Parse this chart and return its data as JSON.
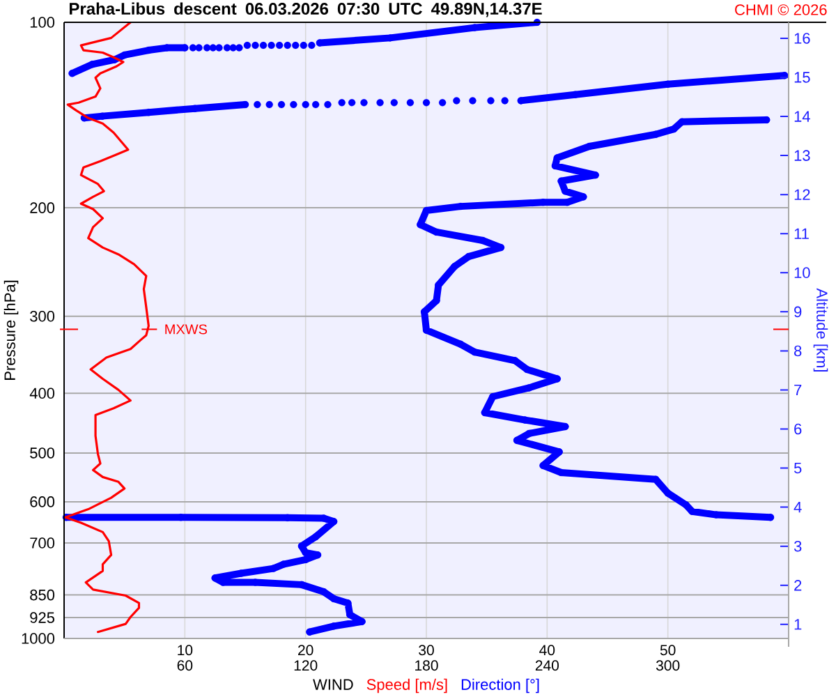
{
  "chart_data": {
    "type": "line",
    "title": "Praha-Libus descent 06.03.2026 07:30 UTC 49.89N,14.37E",
    "xlabel": "WIND",
    "ylabel": "Pressure [hPa]",
    "y2label": "Altitude [km]",
    "annotations": [
      "CHMI © 2026",
      {
        "text": "MXWS",
        "x": 7.0,
        "y": 315
      }
    ],
    "xlim": [
      0,
      60
    ],
    "xticks": [
      10,
      20,
      30,
      40,
      50
    ],
    "x2lim": [
      0,
      360
    ],
    "x2ticks": [
      60,
      120,
      180,
      240,
      300
    ],
    "ylim": [
      1000,
      100
    ],
    "yticks": [
      100,
      200,
      300,
      400,
      500,
      600,
      700,
      850,
      925,
      1000
    ],
    "y2lim": [
      0.64,
      16.41
    ],
    "y2ticks": [
      1,
      2,
      3,
      4,
      5,
      6,
      7,
      8,
      9,
      10,
      11,
      12,
      13,
      14,
      15,
      16
    ],
    "log": "y",
    "grid": true,
    "legend": "bottom",
    "series": [
      {
        "name": "Speed [m/s]",
        "color": "#ff0000",
        "x": [
          5.5,
          3.9,
          1.4,
          1.6,
          3.2,
          4.1,
          4.9,
          4.3,
          3.0,
          2.6,
          3.0,
          2.6,
          1.2,
          0.3,
          1.0,
          2.0,
          3.2,
          4.1,
          5.3,
          4.3,
          3.0,
          1.6,
          1.4,
          2.8,
          3.3,
          2.4,
          1.4,
          2.4,
          3.2,
          2.4,
          2.0,
          3.2,
          4.5,
          5.8,
          6.8,
          6.6,
          6.8,
          7.0,
          6.8,
          6.4,
          5.5,
          3.5,
          2.2,
          3.2,
          4.5,
          5.5,
          4.1,
          2.6,
          2.6,
          2.8,
          3.0,
          2.4,
          3.2,
          4.5,
          5.0,
          3.9,
          2.0,
          0.1,
          1.4,
          3.2,
          3.7,
          3.9,
          3.2,
          3.2,
          1.8,
          2.4,
          5.1,
          6.2,
          6.2,
          5.5,
          5.1,
          2.8
        ],
        "values": [
          100,
          106,
          109,
          111,
          112,
          114,
          116,
          118,
          121,
          123,
          128,
          132,
          135,
          136,
          139,
          143,
          146,
          151,
          161,
          164,
          168,
          172,
          177,
          183,
          188,
          192,
          197,
          201,
          208,
          215,
          224,
          232,
          238,
          247,
          258,
          271,
          290,
          311,
          322,
          327,
          339,
          350,
          366,
          379,
          395,
          411,
          423,
          434,
          469,
          502,
          520,
          533,
          547,
          557,
          571,
          591,
          617,
          636,
          649,
          672,
          695,
          732,
          758,
          777,
          811,
          833,
          852,
          876,
          892,
          923,
          947,
          976
        ]
      },
      {
        "name": "Direction [°]",
        "color": "#0000ff",
        "marker": "circle",
        "axis": "x2",
        "x": [
          235,
          204,
          162,
          127,
          null,
          123,
          null,
          119,
          null,
          115,
          null,
          111,
          null,
          107,
          null,
          103,
          null,
          99,
          null,
          95,
          null,
          91,
          null,
          87,
          null,
          84,
          null,
          81,
          null,
          77,
          null,
          74,
          null,
          71,
          null,
          67,
          null,
          64,
          null,
          60,
          51,
          42,
          30,
          25,
          14,
          4,
          null,
          358,
          300,
          254,
          227,
          null,
          219,
          null,
          212,
          null,
          203,
          null,
          195,
          null,
          188,
          null,
          180,
          null,
          172,
          null,
          164,
          null,
          157,
          null,
          149,
          null,
          143,
          null,
          138,
          null,
          131,
          null,
          125,
          null,
          120,
          null,
          114,
          null,
          108,
          null,
          102,
          null,
          96,
          null,
          90,
          65,
          42,
          19,
          10,
          null,
          349,
          307,
          303,
          294,
          261,
          245,
          244,
          264,
          247,
          249,
          258,
          250,
          238,
          197,
          180,
          177,
          185,
          208,
          217,
          201,
          194,
          186,
          185,
          179,
          180,
          197,
          204,
          224,
          230,
          245,
          231,
          213,
          209,
          229,
          249,
          231,
          225,
          246,
          238,
          247,
          294,
          300,
          309,
          312,
          324,
          351,
          null,
          1,
          58,
          111,
          129,
          134,
          125,
          118,
          120,
          126,
          120,
          109,
          104,
          88,
          75,
          79,
          95,
          118,
          129,
          134,
          141,
          142,
          148,
          134,
          122
        ],
        "values": [
          100,
          102,
          106,
          108,
          null,
          109,
          null,
          109,
          null,
          109,
          null,
          109,
          null,
          109,
          null,
          109,
          null,
          109,
          null,
          109,
          null,
          109,
          null,
          110,
          null,
          110,
          null,
          110,
          null,
          110,
          null,
          110,
          null,
          110,
          null,
          110,
          null,
          110,
          null,
          110,
          110,
          111,
          113,
          115,
          117,
          121,
          null,
          122,
          126,
          131,
          134,
          null,
          134,
          null,
          134,
          null,
          134,
          null,
          134,
          null,
          135,
          null,
          135,
          null,
          135,
          null,
          135,
          null,
          135,
          null,
          135,
          null,
          135,
          null,
          135,
          null,
          136,
          null,
          136,
          null,
          136,
          null,
          136,
          null,
          136,
          null,
          136,
          null,
          136,
          null,
          136,
          138,
          140,
          142,
          143,
          null,
          144,
          145,
          149,
          152,
          159,
          166,
          171,
          177,
          181,
          188,
          192,
          196,
          196,
          199,
          202,
          213,
          219,
          226,
          232,
          240,
          249,
          267,
          283,
          295,
          316,
          333,
          343,
          354,
          366,
          379,
          392,
          405,
          430,
          442,
          453,
          465,
          477,
          498,
          524,
          538,
          552,
          581,
          607,
          622,
          630,
          636,
          null,
          636,
          636,
          637,
          638,
          646,
          684,
          708,
          726,
          732,
          745,
          758,
          770,
          784,
          798,
          811,
          811,
          818,
          840,
          862,
          876,
          915,
          939,
          955,
          976
        ]
      }
    ]
  }
}
